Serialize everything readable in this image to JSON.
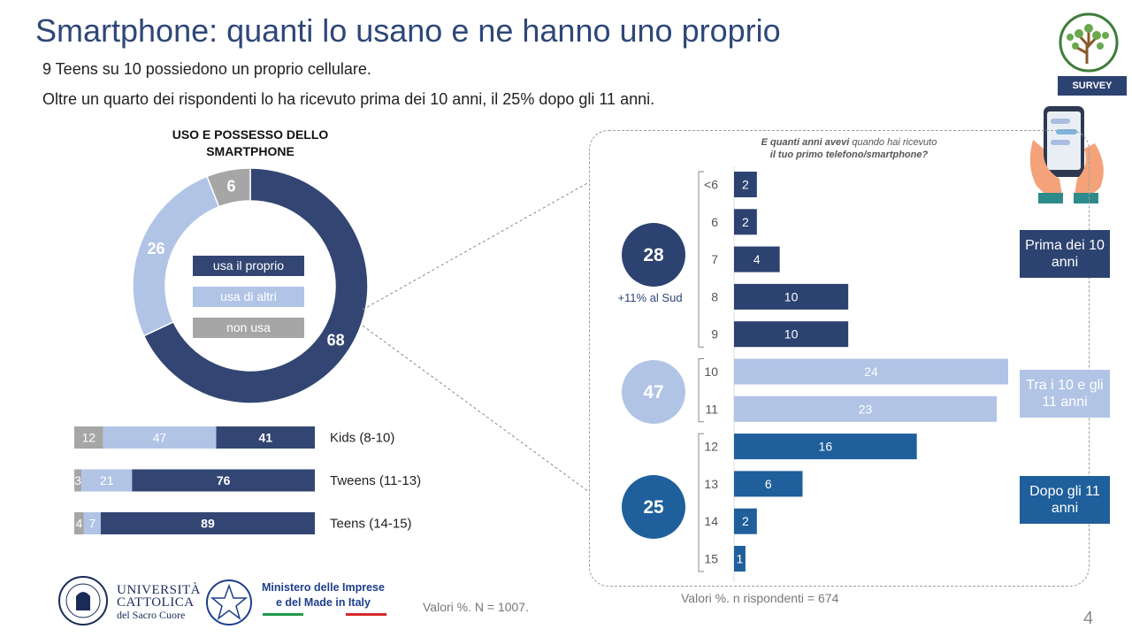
{
  "header": {
    "title": "Smartphone: quanti lo usano e ne hanno uno proprio",
    "subtitle_1": "9 Teens su 10 possiedono un proprio cellulare.",
    "subtitle_2": "Oltre un quarto dei rispondenti lo ha ricevuto prima dei 10 anni, il 25% dopo gli 11 anni.",
    "badge": "SURVEY"
  },
  "donut_title": "USO E POSSESSO DELLO SMARTPHONE",
  "legend": [
    {
      "label": "usa il proprio",
      "color": "#334673"
    },
    {
      "label": "usa di altri",
      "color": "#b1c4e6"
    },
    {
      "label": "non usa",
      "color": "#a6a6a6"
    }
  ],
  "question": {
    "line1_bold": "E quanti anni avevi",
    "line1_rest": " quando hai ricevuto",
    "line2": "il tuo primo telefono/smartphone?"
  },
  "groups": [
    {
      "value": "28",
      "note": "+11% al Sud",
      "tag": "Prima dei 10 anni",
      "color": "#2c4270"
    },
    {
      "value": "47",
      "note": "",
      "tag": "Tra i 10 e gli 11 anni",
      "color": "#b1c4e6"
    },
    {
      "value": "25",
      "note": "",
      "tag": "Dopo gli 11 anni",
      "color": "#1f5f9b"
    }
  ],
  "notes": {
    "left": "Valori %. N = 1007.",
    "right": "Valori %. n rispondenti = 674"
  },
  "logos": {
    "ucsc_line1": "UNIVERSITÀ",
    "ucsc_line2": "CATTOLICA",
    "ucsc_line3": "del Sacro Cuore",
    "mimit_line1": "Ministero delle Imprese",
    "mimit_line2": "e del Made in Italy"
  },
  "page_number": "4",
  "chart_data": [
    {
      "type": "pie",
      "title": "USO E POSSESSO DELLO SMARTPHONE",
      "categories": [
        "usa il proprio",
        "usa di altri",
        "non usa"
      ],
      "values": [
        68,
        26,
        6
      ],
      "colors": [
        "#334673",
        "#b1c4e6",
        "#a6a6a6"
      ]
    },
    {
      "type": "bar",
      "orientation": "horizontal",
      "stacked": true,
      "categories": [
        "Kids (8-10)",
        "Tweens (11-13)",
        "Teens (14-15)"
      ],
      "series": [
        {
          "name": "non usa",
          "values": [
            12,
            3,
            4
          ],
          "color": "#a6a6a6"
        },
        {
          "name": "usa di altri",
          "values": [
            47,
            21,
            7
          ],
          "color": "#b1c4e6"
        },
        {
          "name": "usa il proprio",
          "values": [
            41,
            76,
            89
          ],
          "color": "#334673"
        }
      ]
    },
    {
      "type": "bar",
      "orientation": "horizontal",
      "title": "E quanti anni avevi quando hai ricevuto il tuo primo telefono/smartphone?",
      "categories": [
        "<6",
        "6",
        "7",
        "8",
        "9",
        "10",
        "11",
        "12",
        "13",
        "14",
        "15"
      ],
      "values": [
        2,
        2,
        4,
        10,
        10,
        24,
        23,
        16,
        6,
        2,
        1
      ],
      "colors": [
        "#2c4270",
        "#2c4270",
        "#2c4270",
        "#2c4270",
        "#2c4270",
        "#b1c4e6",
        "#b1c4e6",
        "#1f5f9b",
        "#1f5f9b",
        "#1f5f9b",
        "#1f5f9b"
      ]
    }
  ]
}
